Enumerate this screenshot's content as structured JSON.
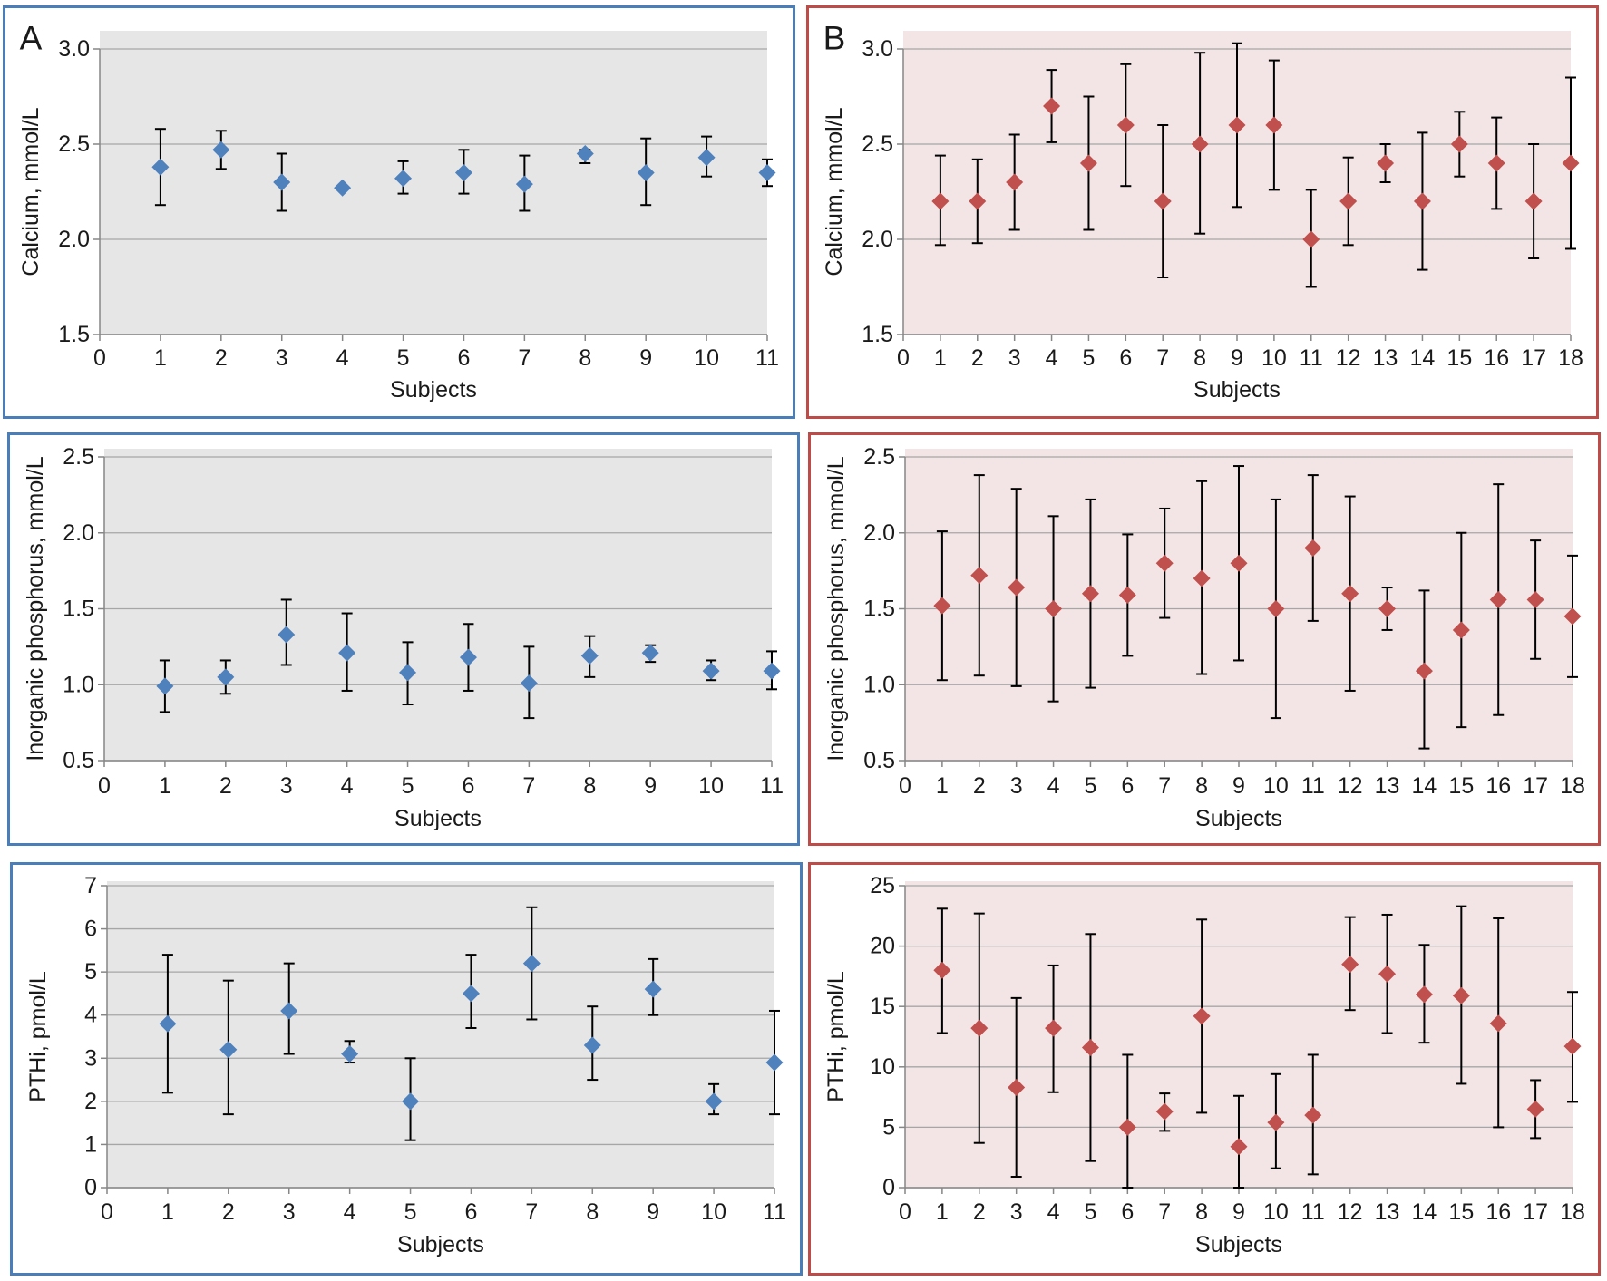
{
  "chart_data": [
    {
      "type": "scatter",
      "panel_label": "A",
      "xlabel": "Subjects",
      "ylabel": "Calcium, mmol/L",
      "xlim": [
        0,
        11
      ],
      "ylim": [
        1.5,
        3.0
      ],
      "xticks": [
        0,
        1,
        2,
        3,
        4,
        5,
        6,
        7,
        8,
        9,
        10,
        11
      ],
      "yticks": [
        "1.5",
        "2.0",
        "2.5",
        "3.0"
      ],
      "grid": true,
      "error_bars": true,
      "marker": "diamond",
      "colors": {
        "frame": "#4a7ebb",
        "plot_bg": "#e6e6e6",
        "marker": "#4f81bd",
        "error_bar": "#000000",
        "grid": "#a6a6a6",
        "axis": "#868686"
      },
      "series": [
        {
          "x": [
            1,
            2,
            3,
            4,
            5,
            6,
            7,
            8,
            9,
            10,
            11
          ],
          "y": [
            2.38,
            2.47,
            2.3,
            2.27,
            2.32,
            2.35,
            2.29,
            2.45,
            2.35,
            2.43,
            2.35
          ],
          "y_upper": [
            2.58,
            2.57,
            2.45,
            null,
            2.41,
            2.47,
            2.44,
            2.47,
            2.53,
            2.54,
            2.42
          ],
          "y_lower": [
            2.18,
            2.37,
            2.15,
            null,
            2.24,
            2.24,
            2.15,
            2.4,
            2.18,
            2.33,
            2.28
          ]
        }
      ]
    },
    {
      "type": "scatter",
      "panel_label": "B",
      "xlabel": "Subjects",
      "ylabel": "Calcium, mmol/L",
      "xlim": [
        0,
        18
      ],
      "ylim": [
        1.5,
        3.0
      ],
      "xticks": [
        0,
        1,
        2,
        3,
        4,
        5,
        6,
        7,
        8,
        9,
        10,
        11,
        12,
        13,
        14,
        15,
        16,
        17,
        18
      ],
      "yticks": [
        "1.5",
        "2.0",
        "2.5",
        "3.0"
      ],
      "grid": true,
      "error_bars": true,
      "marker": "diamond",
      "colors": {
        "frame": "#be4b48",
        "plot_bg": "#f3e5e5",
        "marker": "#c0504d",
        "error_bar": "#000000",
        "grid": "#a6a6a6",
        "axis": "#868686"
      },
      "series": [
        {
          "x": [
            1,
            2,
            3,
            4,
            5,
            6,
            7,
            8,
            9,
            10,
            11,
            12,
            13,
            14,
            15,
            16,
            17,
            18
          ],
          "y": [
            2.2,
            2.2,
            2.3,
            2.7,
            2.4,
            2.6,
            2.2,
            2.5,
            2.6,
            2.6,
            2.0,
            2.2,
            2.4,
            2.2,
            2.5,
            2.4,
            2.2,
            2.4
          ],
          "y_upper": [
            2.44,
            2.42,
            2.55,
            2.89,
            2.75,
            2.92,
            2.6,
            2.98,
            3.03,
            2.94,
            2.26,
            2.43,
            2.5,
            2.56,
            2.67,
            2.64,
            2.5,
            2.85
          ],
          "y_lower": [
            1.97,
            1.98,
            2.05,
            2.51,
            2.05,
            2.28,
            1.8,
            2.03,
            2.17,
            2.26,
            1.75,
            1.97,
            2.3,
            1.84,
            2.33,
            2.16,
            1.9,
            1.95
          ]
        }
      ]
    },
    {
      "type": "scatter",
      "panel_label": "",
      "xlabel": "Subjects",
      "ylabel": "Inorganic phosphorus, mmol/L",
      "xlim": [
        0,
        11
      ],
      "ylim": [
        0.5,
        2.5
      ],
      "xticks": [
        0,
        1,
        2,
        3,
        4,
        5,
        6,
        7,
        8,
        9,
        10,
        11
      ],
      "yticks": [
        "0.5",
        "1.0",
        "1.5",
        "2.0",
        "2.5"
      ],
      "grid": true,
      "error_bars": true,
      "marker": "diamond",
      "colors": {
        "frame": "#4a7ebb",
        "plot_bg": "#e6e6e6",
        "marker": "#4f81bd",
        "error_bar": "#000000",
        "grid": "#a6a6a6",
        "axis": "#868686"
      },
      "series": [
        {
          "x": [
            1,
            2,
            3,
            4,
            5,
            6,
            7,
            8,
            9,
            10,
            11
          ],
          "y": [
            0.99,
            1.05,
            1.33,
            1.21,
            1.08,
            1.18,
            1.01,
            1.19,
            1.21,
            1.09,
            1.09
          ],
          "y_upper": [
            1.16,
            1.16,
            1.56,
            1.47,
            1.28,
            1.4,
            1.25,
            1.32,
            1.26,
            1.16,
            1.22
          ],
          "y_lower": [
            0.82,
            0.94,
            1.13,
            0.96,
            0.87,
            0.96,
            0.78,
            1.05,
            1.15,
            1.03,
            0.97
          ]
        }
      ]
    },
    {
      "type": "scatter",
      "panel_label": "",
      "xlabel": "Subjects",
      "ylabel": "Inorganic phosphorus, mmol/L",
      "xlim": [
        0,
        18
      ],
      "ylim": [
        0.5,
        2.5
      ],
      "xticks": [
        0,
        1,
        2,
        3,
        4,
        5,
        6,
        7,
        8,
        9,
        10,
        11,
        12,
        13,
        14,
        15,
        16,
        17,
        18
      ],
      "yticks": [
        "0.5",
        "1.0",
        "1.5",
        "2.0",
        "2.5"
      ],
      "grid": true,
      "error_bars": true,
      "marker": "diamond",
      "colors": {
        "frame": "#be4b48",
        "plot_bg": "#f3e5e5",
        "marker": "#c0504d",
        "error_bar": "#000000",
        "grid": "#a6a6a6",
        "axis": "#868686"
      },
      "series": [
        {
          "x": [
            1,
            2,
            3,
            4,
            5,
            6,
            7,
            8,
            9,
            10,
            11,
            12,
            13,
            14,
            15,
            16,
            17,
            18
          ],
          "y": [
            1.52,
            1.72,
            1.64,
            1.5,
            1.6,
            1.59,
            1.8,
            1.7,
            1.8,
            1.5,
            1.9,
            1.6,
            1.5,
            1.09,
            1.36,
            1.56,
            1.56,
            1.45
          ],
          "y_upper": [
            2.01,
            2.38,
            2.29,
            2.11,
            2.22,
            1.99,
            2.16,
            2.34,
            2.44,
            2.22,
            2.38,
            2.24,
            1.64,
            1.62,
            2.0,
            2.32,
            1.95,
            1.85
          ],
          "y_lower": [
            1.03,
            1.06,
            0.99,
            0.89,
            0.98,
            1.19,
            1.44,
            1.07,
            1.16,
            0.78,
            1.42,
            0.96,
            1.36,
            0.58,
            0.72,
            0.8,
            1.17,
            1.05
          ]
        }
      ]
    },
    {
      "type": "scatter",
      "panel_label": "",
      "xlabel": "Subjects",
      "ylabel": "PTHi, pmol/L",
      "xlim": [
        0,
        11
      ],
      "ylim": [
        0,
        7
      ],
      "xticks": [
        0,
        1,
        2,
        3,
        4,
        5,
        6,
        7,
        8,
        9,
        10,
        11
      ],
      "yticks": [
        "0",
        "1",
        "2",
        "3",
        "4",
        "5",
        "6",
        "7"
      ],
      "grid": true,
      "error_bars": true,
      "marker": "diamond",
      "colors": {
        "frame": "#4a7ebb",
        "plot_bg": "#e6e6e6",
        "marker": "#4f81bd",
        "error_bar": "#000000",
        "grid": "#a6a6a6",
        "axis": "#868686"
      },
      "series": [
        {
          "x": [
            1,
            2,
            3,
            4,
            5,
            6,
            7,
            8,
            9,
            10,
            11
          ],
          "y": [
            3.8,
            3.2,
            4.1,
            3.1,
            2.0,
            4.5,
            5.2,
            3.3,
            4.6,
            2.0,
            2.9
          ],
          "y_upper": [
            5.4,
            4.8,
            5.2,
            3.4,
            3.0,
            5.4,
            6.5,
            4.2,
            5.3,
            2.4,
            4.1
          ],
          "y_lower": [
            2.2,
            1.7,
            3.1,
            2.9,
            1.1,
            3.7,
            3.9,
            2.5,
            4.0,
            1.7,
            1.7
          ]
        }
      ]
    },
    {
      "type": "scatter",
      "panel_label": "",
      "xlabel": "Subjects",
      "ylabel": "PTHi, pmol/L",
      "xlim": [
        0,
        18
      ],
      "ylim": [
        0,
        25
      ],
      "xticks": [
        0,
        1,
        2,
        3,
        4,
        5,
        6,
        7,
        8,
        9,
        10,
        11,
        12,
        13,
        14,
        15,
        16,
        17,
        18
      ],
      "yticks": [
        "0",
        "5",
        "10",
        "15",
        "20",
        "25"
      ],
      "grid": true,
      "error_bars": true,
      "marker": "diamond",
      "colors": {
        "frame": "#be4b48",
        "plot_bg": "#f3e5e5",
        "marker": "#c0504d",
        "error_bar": "#000000",
        "grid": "#a6a6a6",
        "axis": "#868686"
      },
      "series": [
        {
          "x": [
            1,
            2,
            3,
            4,
            5,
            6,
            7,
            8,
            9,
            10,
            11,
            12,
            13,
            14,
            15,
            16,
            17,
            18
          ],
          "y": [
            18.0,
            13.2,
            8.3,
            13.2,
            11.6,
            5.0,
            6.3,
            14.2,
            3.4,
            5.4,
            6.0,
            18.5,
            17.7,
            16.0,
            15.9,
            13.6,
            6.5,
            11.7
          ],
          "y_upper": [
            23.1,
            22.7,
            15.7,
            18.4,
            21.0,
            11.0,
            7.8,
            22.2,
            7.6,
            9.4,
            11.0,
            22.4,
            22.6,
            20.1,
            23.3,
            22.3,
            8.9,
            16.2
          ],
          "y_lower": [
            12.8,
            3.7,
            0.9,
            7.9,
            2.2,
            0.0,
            4.7,
            6.2,
            0.0,
            1.6,
            1.1,
            14.7,
            12.8,
            12.0,
            8.6,
            5.0,
            4.1,
            7.1
          ]
        }
      ]
    }
  ]
}
